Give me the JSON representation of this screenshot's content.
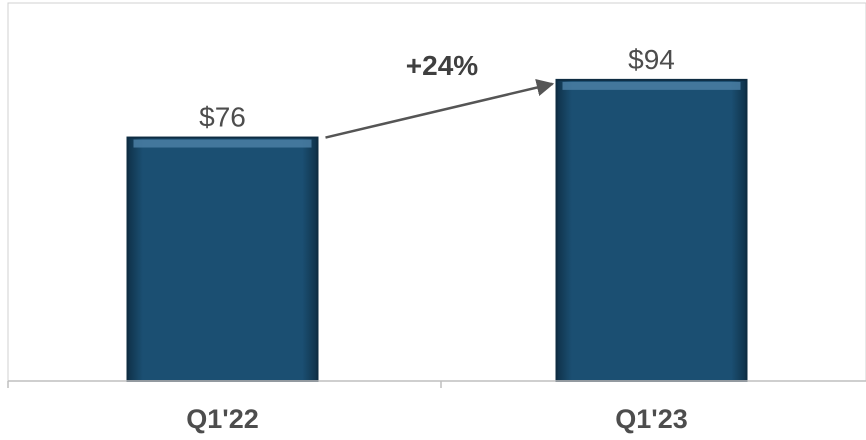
{
  "chart_data": {
    "type": "bar",
    "categories": [
      "Q1'22",
      "Q1'23"
    ],
    "values": [
      76,
      94
    ],
    "value_labels": [
      "$76",
      "$94"
    ],
    "annotations": [
      {
        "text": "+24%",
        "from_category": "Q1'22",
        "to_category": "Q1'23"
      }
    ],
    "ylim": [
      0,
      118
    ],
    "grid": false,
    "legend": "none",
    "title": "",
    "xlabel": "",
    "ylabel": ""
  },
  "colors": {
    "bar_fill": "#1b4f72",
    "bar_edge_dark": "#0e2c42",
    "bar_highlight": "#4a7ea3",
    "arrow": "#555555",
    "frame": "#d0d0d0",
    "axis": "#bfbfbf"
  }
}
